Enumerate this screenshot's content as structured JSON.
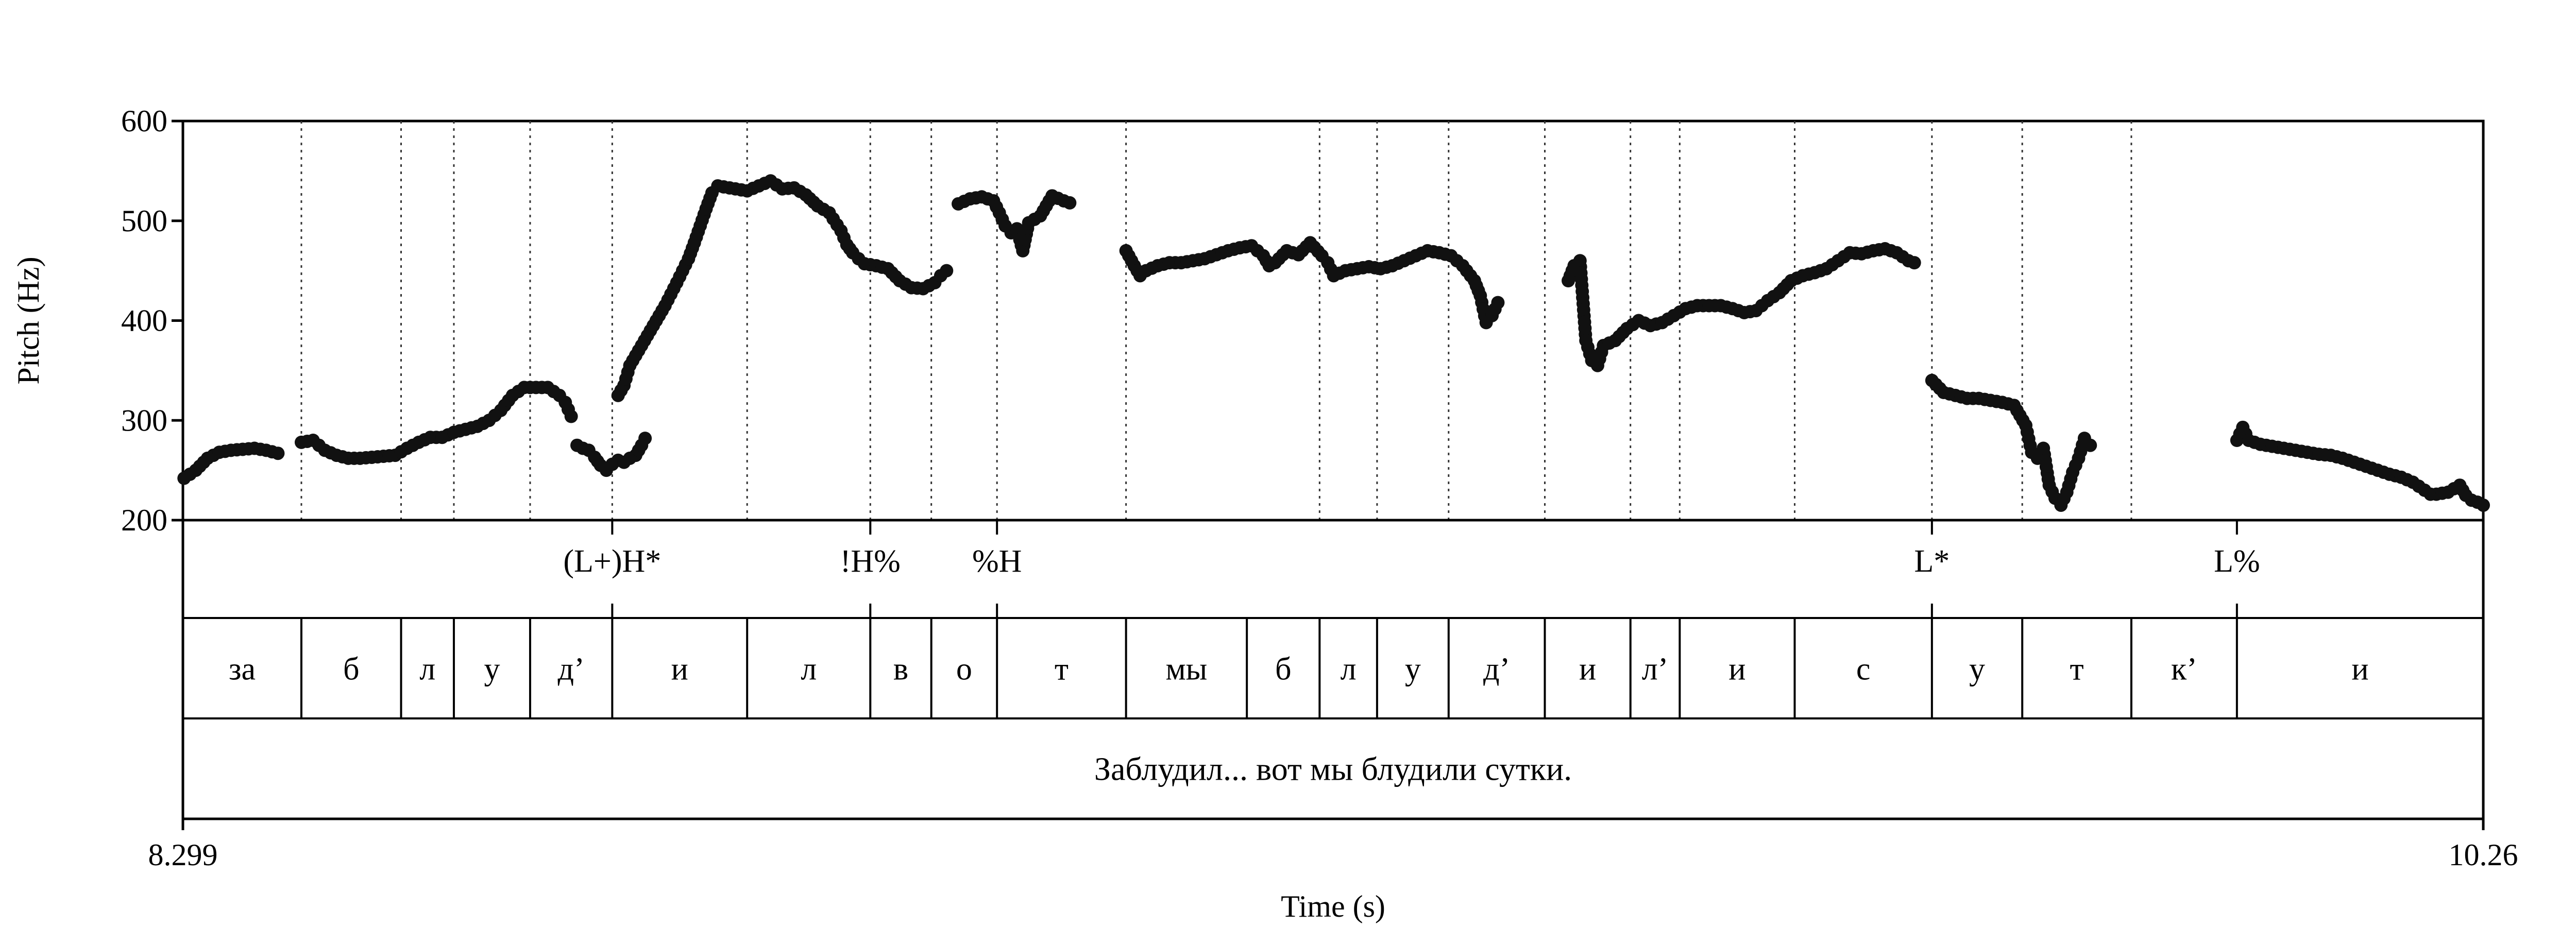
{
  "chart_data": {
    "type": "scatter",
    "xlabel": "Time (s)",
    "ylabel": "Pitch (Hz)",
    "xlim": [
      8.299,
      10.26
    ],
    "ylim": [
      200,
      600
    ],
    "x_tick_labels": [
      "8.299",
      "10.26"
    ],
    "y_ticks": [
      200,
      300,
      400,
      500,
      600
    ],
    "grid": false,
    "boundaries": [
      8.4,
      8.485,
      8.53,
      8.595,
      8.665,
      8.78,
      8.885,
      8.937,
      8.993,
      9.103,
      9.268,
      9.317,
      9.378,
      9.46,
      9.533,
      9.575,
      9.673,
      9.79,
      9.867,
      9.96
    ],
    "tones": [
      {
        "label": "(L+)H*",
        "time": 8.665
      },
      {
        "label": "!H%",
        "time": 8.885
      },
      {
        "label": "%H",
        "time": 8.993
      },
      {
        "label": "L*",
        "time": 9.79
      },
      {
        "label": "L%",
        "time": 10.05
      }
    ],
    "segments": [
      {
        "label": "за",
        "start": 8.299,
        "end": 8.4
      },
      {
        "label": "б",
        "start": 8.4,
        "end": 8.485
      },
      {
        "label": "л",
        "start": 8.485,
        "end": 8.53
      },
      {
        "label": "у",
        "start": 8.53,
        "end": 8.595
      },
      {
        "label": "д’",
        "start": 8.595,
        "end": 8.665
      },
      {
        "label": "и",
        "start": 8.665,
        "end": 8.78
      },
      {
        "label": "л",
        "start": 8.78,
        "end": 8.885
      },
      {
        "label": "в",
        "start": 8.885,
        "end": 8.937
      },
      {
        "label": "о",
        "start": 8.937,
        "end": 8.993
      },
      {
        "label": "т",
        "start": 8.993,
        "end": 9.103
      },
      {
        "label": "мы",
        "start": 9.103,
        "end": 9.206
      },
      {
        "label": "б",
        "start": 9.206,
        "end": 9.268
      },
      {
        "label": "л",
        "start": 9.268,
        "end": 9.317
      },
      {
        "label": "у",
        "start": 9.317,
        "end": 9.378
      },
      {
        "label": "д’",
        "start": 9.378,
        "end": 9.46
      },
      {
        "label": "и",
        "start": 9.46,
        "end": 9.533
      },
      {
        "label": "л’",
        "start": 9.533,
        "end": 9.575
      },
      {
        "label": "и",
        "start": 9.575,
        "end": 9.673
      },
      {
        "label": "с",
        "start": 9.673,
        "end": 9.79
      },
      {
        "label": "у",
        "start": 9.79,
        "end": 9.867
      },
      {
        "label": "т",
        "start": 9.867,
        "end": 9.96
      },
      {
        "label": "к’",
        "start": 9.96,
        "end": 10.05
      },
      {
        "label": "и",
        "start": 10.05,
        "end": 10.26
      }
    ],
    "sentence": "Заблудил... вот мы блудили сутки.",
    "pitch_contours": [
      [
        [
          8.3,
          242
        ],
        [
          8.31,
          250
        ],
        [
          8.32,
          262
        ],
        [
          8.33,
          268
        ],
        [
          8.34,
          270
        ],
        [
          8.35,
          271
        ],
        [
          8.36,
          272
        ],
        [
          8.37,
          270
        ],
        [
          8.38,
          267
        ]
      ],
      [
        [
          8.4,
          278
        ],
        [
          8.41,
          280
        ],
        [
          8.42,
          270
        ],
        [
          8.43,
          265
        ],
        [
          8.44,
          262
        ],
        [
          8.45,
          262
        ],
        [
          8.46,
          263
        ],
        [
          8.47,
          264
        ],
        [
          8.48,
          265
        ],
        [
          8.49,
          272
        ],
        [
          8.5,
          278
        ],
        [
          8.51,
          283
        ],
        [
          8.52,
          283
        ],
        [
          8.53,
          288
        ],
        [
          8.54,
          291
        ],
        [
          8.55,
          294
        ],
        [
          8.56,
          300
        ],
        [
          8.57,
          310
        ],
        [
          8.58,
          325
        ],
        [
          8.59,
          333
        ],
        [
          8.6,
          333
        ],
        [
          8.61,
          333
        ],
        [
          8.62,
          325
        ],
        [
          8.625,
          318
        ],
        [
          8.63,
          304
        ]
      ],
      [
        [
          8.635,
          275
        ],
        [
          8.64,
          272
        ],
        [
          8.645,
          270
        ],
        [
          8.65,
          263
        ],
        [
          8.655,
          255
        ],
        [
          8.66,
          250
        ],
        [
          8.665,
          256
        ],
        [
          8.67,
          260
        ],
        [
          8.675,
          258
        ],
        [
          8.68,
          262
        ],
        [
          8.685,
          265
        ],
        [
          8.69,
          275
        ],
        [
          8.693,
          282
        ]
      ],
      [
        [
          8.67,
          325
        ],
        [
          8.675,
          335
        ],
        [
          8.68,
          355
        ],
        [
          8.69,
          375
        ],
        [
          8.7,
          395
        ],
        [
          8.71,
          415
        ],
        [
          8.72,
          438
        ],
        [
          8.73,
          462
        ],
        [
          8.735,
          478
        ],
        [
          8.74,
          495
        ],
        [
          8.745,
          512
        ],
        [
          8.75,
          528
        ],
        [
          8.755,
          535
        ],
        [
          8.76,
          534
        ],
        [
          8.77,
          532
        ],
        [
          8.78,
          530
        ],
        [
          8.79,
          535
        ],
        [
          8.8,
          540
        ],
        [
          8.81,
          532
        ],
        [
          8.82,
          533
        ],
        [
          8.83,
          526
        ],
        [
          8.84,
          515
        ],
        [
          8.85,
          508
        ],
        [
          8.86,
          490
        ],
        [
          8.865,
          476
        ],
        [
          8.87,
          468
        ],
        [
          8.875,
          462
        ],
        [
          8.88,
          457
        ],
        [
          8.89,
          455
        ],
        [
          8.9,
          452
        ],
        [
          8.91,
          440
        ],
        [
          8.92,
          433
        ],
        [
          8.93,
          432
        ],
        [
          8.94,
          438
        ],
        [
          8.945,
          445
        ],
        [
          8.95,
          450
        ]
      ],
      [
        [
          8.96,
          517
        ],
        [
          8.97,
          522
        ],
        [
          8.98,
          524
        ],
        [
          8.99,
          520
        ],
        [
          8.995,
          508
        ],
        [
          9.0,
          495
        ],
        [
          9.005,
          488
        ],
        [
          9.01,
          492
        ],
        [
          9.015,
          470
        ],
        [
          9.02,
          498
        ],
        [
          9.03,
          505
        ],
        [
          9.035,
          515
        ],
        [
          9.04,
          525
        ],
        [
          9.05,
          520
        ],
        [
          9.055,
          518
        ]
      ],
      [
        [
          9.103,
          470
        ],
        [
          9.11,
          455
        ],
        [
          9.115,
          445
        ],
        [
          9.12,
          450
        ],
        [
          9.13,
          455
        ],
        [
          9.14,
          458
        ],
        [
          9.15,
          458
        ],
        [
          9.16,
          460
        ],
        [
          9.17,
          462
        ],
        [
          9.18,
          466
        ],
        [
          9.19,
          470
        ],
        [
          9.2,
          473
        ],
        [
          9.21,
          475
        ],
        [
          9.22,
          465
        ],
        [
          9.225,
          455
        ],
        [
          9.23,
          458
        ],
        [
          9.24,
          470
        ],
        [
          9.25,
          466
        ],
        [
          9.26,
          478
        ],
        [
          9.27,
          465
        ],
        [
          9.275,
          458
        ],
        [
          9.28,
          445
        ],
        [
          9.29,
          450
        ],
        [
          9.3,
          452
        ],
        [
          9.31,
          454
        ],
        [
          9.32,
          452
        ],
        [
          9.33,
          455
        ],
        [
          9.34,
          460
        ],
        [
          9.35,
          465
        ],
        [
          9.36,
          470
        ],
        [
          9.37,
          468
        ],
        [
          9.38,
          465
        ],
        [
          9.39,
          455
        ],
        [
          9.4,
          440
        ],
        [
          9.405,
          425
        ],
        [
          9.41,
          398
        ],
        [
          9.415,
          405
        ],
        [
          9.42,
          418
        ]
      ],
      [
        [
          9.48,
          440
        ],
        [
          9.485,
          455
        ],
        [
          9.49,
          460
        ],
        [
          9.495,
          380
        ],
        [
          9.5,
          360
        ],
        [
          9.505,
          355
        ],
        [
          9.51,
          375
        ],
        [
          9.52,
          380
        ],
        [
          9.53,
          392
        ],
        [
          9.54,
          400
        ],
        [
          9.55,
          395
        ],
        [
          9.56,
          398
        ],
        [
          9.57,
          405
        ],
        [
          9.58,
          412
        ],
        [
          9.59,
          415
        ],
        [
          9.6,
          415
        ],
        [
          9.61,
          415
        ],
        [
          9.62,
          412
        ],
        [
          9.63,
          408
        ],
        [
          9.64,
          410
        ],
        [
          9.65,
          420
        ],
        [
          9.66,
          428
        ],
        [
          9.67,
          440
        ],
        [
          9.68,
          445
        ],
        [
          9.69,
          448
        ],
        [
          9.7,
          452
        ],
        [
          9.71,
          460
        ],
        [
          9.72,
          468
        ],
        [
          9.73,
          467
        ],
        [
          9.74,
          470
        ],
        [
          9.75,
          472
        ],
        [
          9.76,
          468
        ],
        [
          9.77,
          460
        ],
        [
          9.775,
          458
        ]
      ],
      [
        [
          9.79,
          340
        ],
        [
          9.8,
          328
        ],
        [
          9.81,
          325
        ],
        [
          9.82,
          322
        ],
        [
          9.83,
          322
        ],
        [
          9.84,
          320
        ],
        [
          9.85,
          318
        ],
        [
          9.86,
          315
        ],
        [
          9.865,
          305
        ],
        [
          9.87,
          295
        ],
        [
          9.875,
          268
        ],
        [
          9.88,
          262
        ],
        [
          9.885,
          272
        ],
        [
          9.89,
          235
        ],
        [
          9.895,
          222
        ],
        [
          9.9,
          215
        ],
        [
          9.905,
          228
        ],
        [
          9.91,
          248
        ],
        [
          9.915,
          262
        ],
        [
          9.92,
          282
        ],
        [
          9.925,
          275
        ]
      ],
      [
        [
          10.05,
          280
        ],
        [
          10.055,
          293
        ],
        [
          10.06,
          280
        ],
        [
          10.07,
          276
        ],
        [
          10.08,
          274
        ],
        [
          10.09,
          272
        ],
        [
          10.1,
          270
        ],
        [
          10.11,
          268
        ],
        [
          10.12,
          266
        ],
        [
          10.13,
          265
        ],
        [
          10.14,
          262
        ],
        [
          10.15,
          258
        ],
        [
          10.16,
          254
        ],
        [
          10.17,
          250
        ],
        [
          10.18,
          246
        ],
        [
          10.19,
          243
        ],
        [
          10.2,
          238
        ],
        [
          10.21,
          230
        ],
        [
          10.215,
          226
        ],
        [
          10.22,
          226
        ],
        [
          10.23,
          228
        ],
        [
          10.24,
          235
        ],
        [
          10.245,
          225
        ],
        [
          10.25,
          220
        ],
        [
          10.255,
          218
        ],
        [
          10.26,
          215
        ]
      ]
    ]
  }
}
